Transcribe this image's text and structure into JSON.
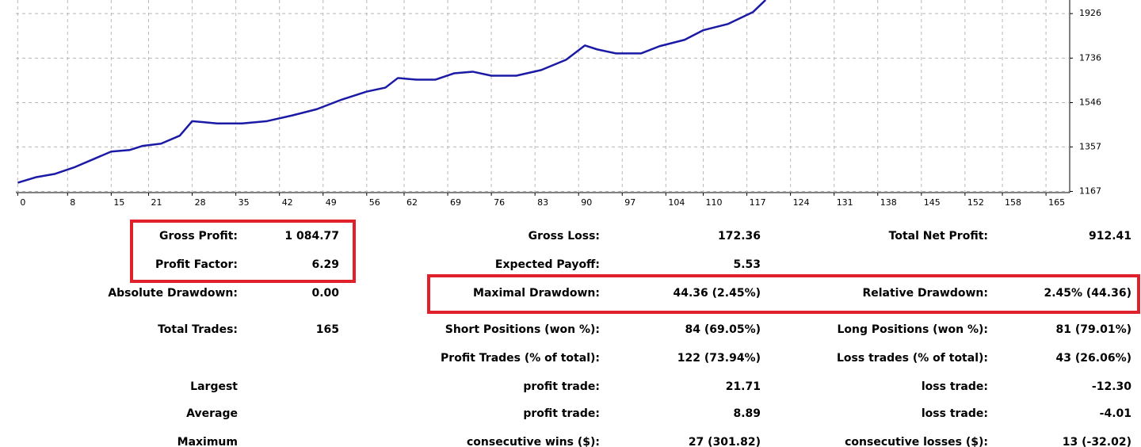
{
  "chart_data": {
    "type": "line",
    "x": [
      0,
      3,
      6,
      9,
      12,
      15,
      18,
      20,
      23,
      26,
      28,
      32,
      36,
      40,
      44,
      48,
      52,
      56,
      59,
      61,
      64,
      67,
      70,
      73,
      76,
      80,
      84,
      88,
      91,
      93,
      96,
      100,
      103,
      107,
      110,
      114,
      118,
      120
    ],
    "values": [
      1204,
      1228,
      1242,
      1269,
      1303,
      1337,
      1344,
      1361,
      1371,
      1405,
      1467,
      1457,
      1457,
      1467,
      1491,
      1518,
      1559,
      1593,
      1610,
      1651,
      1644,
      1644,
      1671,
      1678,
      1661,
      1661,
      1685,
      1729,
      1790,
      1773,
      1756,
      1756,
      1787,
      1814,
      1855,
      1882,
      1933,
      1984
    ],
    "color": "#1a1aa6",
    "xlim": [
      -0.3,
      168.8
    ],
    "ylim": [
      1162,
      1984
    ],
    "xticks": [
      0,
      8,
      15,
      21,
      28,
      35,
      42,
      49,
      56,
      62,
      69,
      76,
      83,
      90,
      97,
      104,
      110,
      117,
      124,
      131,
      138,
      145,
      152,
      158,
      165
    ],
    "yticks": [
      1167,
      1357,
      1546,
      1736,
      1926
    ],
    "grid": true
  },
  "stats": [
    [
      "Gross Profit:",
      "1 084.77",
      "Gross Loss:",
      "172.36",
      "Total Net Profit:",
      "912.41"
    ],
    [
      "Profit Factor:",
      "6.29",
      "Expected Payoff:",
      "5.53",
      null,
      null
    ],
    [
      "Absolute Drawdown:",
      "0.00",
      "Maximal Drawdown:",
      "44.36 (2.45%)",
      "Relative Drawdown:",
      "2.45% (44.36)"
    ],
    [
      "Total Trades:",
      "165",
      "Short Positions (won %):",
      "84 (69.05%)",
      "Long Positions (won %):",
      "81 (79.01%)"
    ],
    [
      null,
      null,
      "Profit Trades (% of total):",
      "122 (73.94%)",
      "Loss trades (% of total):",
      "43 (26.06%)"
    ],
    [
      "Largest",
      null,
      "profit trade:",
      "21.71",
      "loss trade:",
      "-12.30"
    ],
    [
      "Average",
      null,
      "profit trade:",
      "8.89",
      "loss trade:",
      "-4.01"
    ],
    [
      "Maximum",
      null,
      "consecutive wins ($):",
      "27 (301.82)",
      "consecutive losses ($):",
      "13 (-32.02)"
    ]
  ]
}
